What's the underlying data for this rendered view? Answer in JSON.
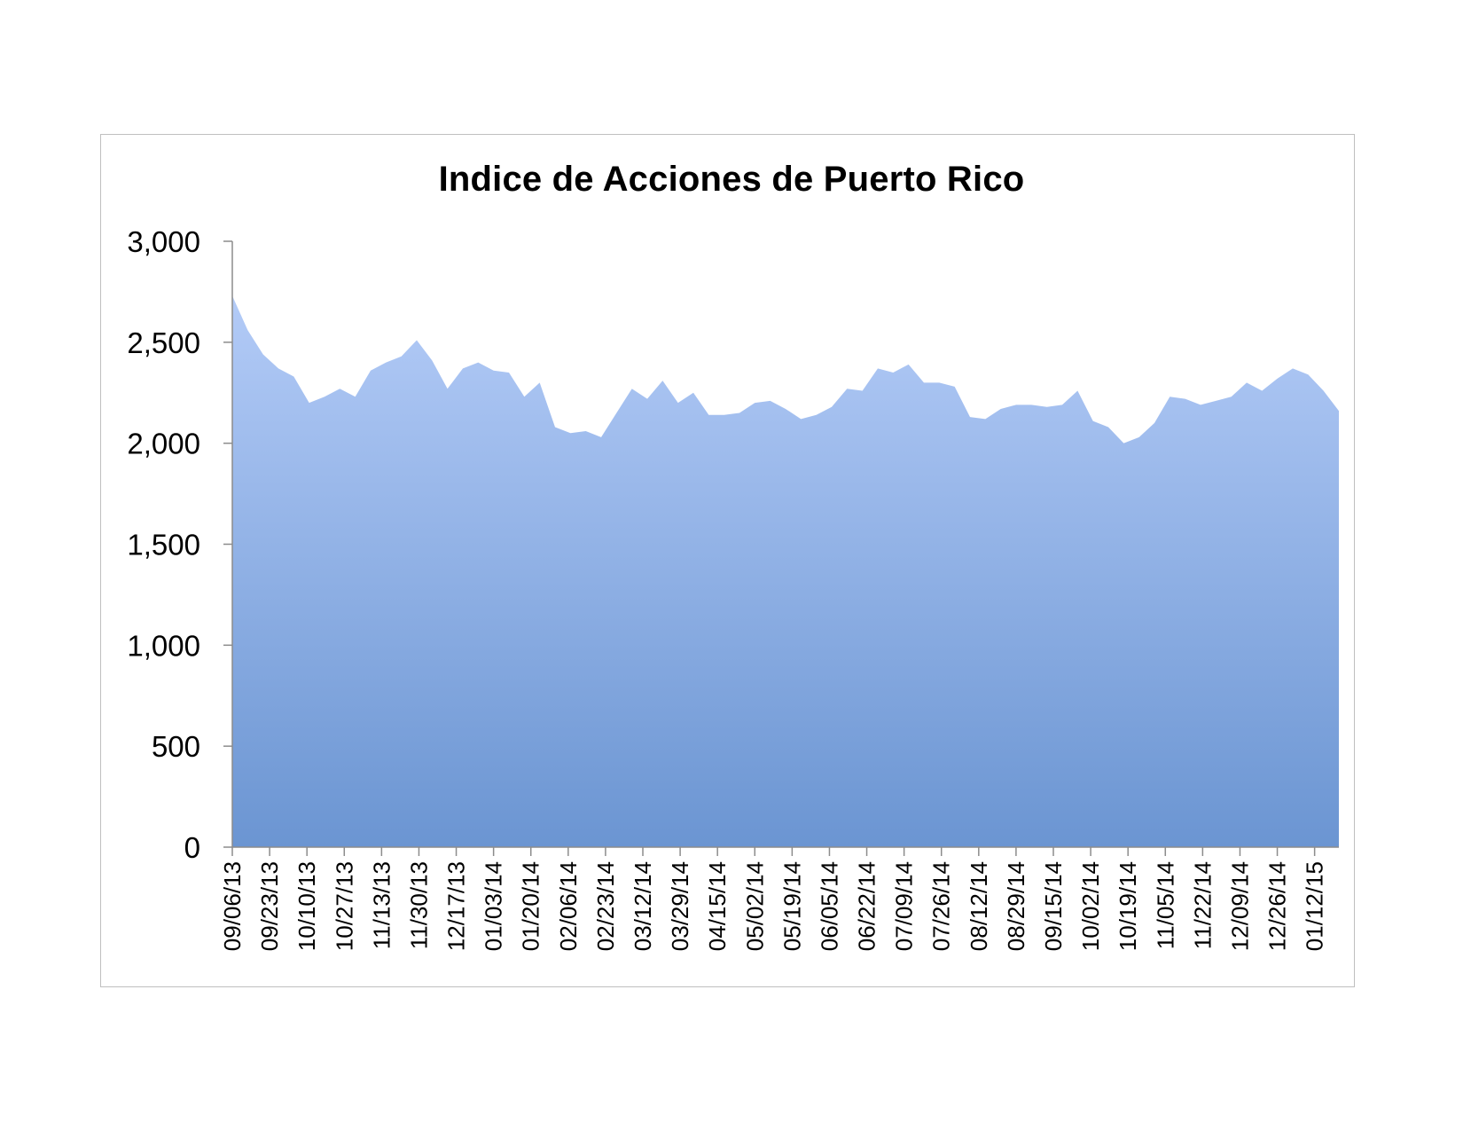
{
  "chart_data": {
    "type": "area",
    "title": "Indice de Acciones de Puerto Rico",
    "xlabel": "",
    "ylabel": "",
    "ylim": [
      0,
      3000
    ],
    "yticks": [
      "0",
      "500",
      "1,000",
      "1,500",
      "2,000",
      "2,500",
      "3,000"
    ],
    "ytick_values": [
      0,
      500,
      1000,
      1500,
      2000,
      2500,
      3000
    ],
    "xtick_labels": [
      "09/06/13",
      "09/23/13",
      "10/10/13",
      "10/27/13",
      "11/13/13",
      "11/30/13",
      "12/17/13",
      "01/03/14",
      "01/20/14",
      "02/06/14",
      "02/23/14",
      "03/12/14",
      "03/29/14",
      "04/15/14",
      "05/02/14",
      "05/19/14",
      "06/05/14",
      "06/22/14",
      "07/09/14",
      "07/26/14",
      "08/12/14",
      "08/29/14",
      "09/15/14",
      "10/02/14",
      "10/19/14",
      "11/05/14",
      "11/22/14",
      "12/09/14",
      "12/26/14",
      "01/12/15"
    ],
    "grid": false,
    "legend": "none",
    "fill_color_top": "#b3cbf7",
    "fill_color_bottom": "#6b95d2",
    "series": [
      {
        "values": [
          2730,
          2560,
          2440,
          2370,
          2330,
          2200,
          2230,
          2270,
          2230,
          2360,
          2400,
          2430,
          2510,
          2410,
          2270,
          2370,
          2400,
          2360,
          2350,
          2230,
          2300,
          2080,
          2050,
          2060,
          2030,
          2150,
          2270,
          2220,
          2310,
          2200,
          2250,
          2140,
          2140,
          2150,
          2200,
          2210,
          2170,
          2120,
          2140,
          2180,
          2270,
          2260,
          2370,
          2350,
          2390,
          2300,
          2300,
          2280,
          2130,
          2120,
          2170,
          2190,
          2190,
          2180,
          2190,
          2260,
          2110,
          2080,
          2000,
          2030,
          2100,
          2230,
          2220,
          2190,
          2210,
          2230,
          2300,
          2260,
          2320,
          2370,
          2340,
          2260,
          2160
        ]
      }
    ]
  }
}
